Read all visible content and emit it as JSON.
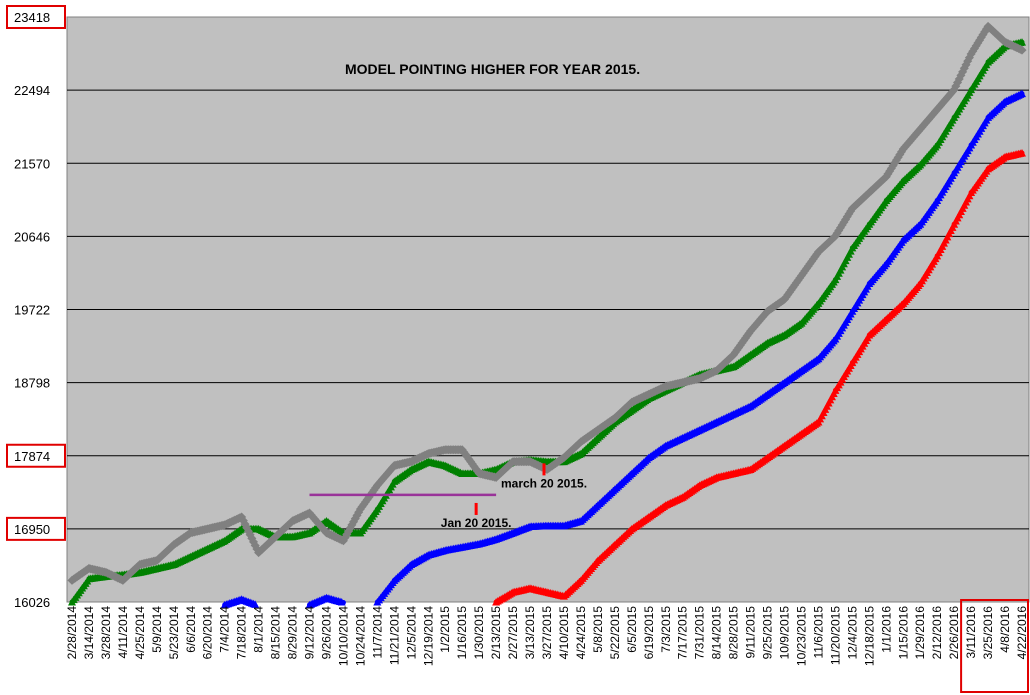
{
  "chart_data": {
    "type": "line",
    "title": "MODEL POINTING HIGHER FOR YEAR 2015.",
    "xlabel": "",
    "ylabel": "",
    "ylim": [
      16026,
      23418
    ],
    "yticks": [
      16026,
      16950,
      17874,
      18798,
      19722,
      20646,
      21570,
      22494,
      23418
    ],
    "highlighted_yticks": [
      23418,
      17874,
      16950
    ],
    "grid": true,
    "legend": "none",
    "colors": {
      "plot_bg": "#c0c0c0",
      "actual": "#808080",
      "green": "#008000",
      "blue": "#0000ff",
      "red": "#ff0000",
      "horizontal_marker": "#993399",
      "marker_tick": "#ff0000",
      "highlight_box": "#e00000"
    },
    "x": [
      "2/28/2014",
      "3/14/2014",
      "3/28/2014",
      "4/11/2014",
      "4/25/2014",
      "5/9/2014",
      "5/23/2014",
      "6/6/2014",
      "6/20/2014",
      "7/4/2014",
      "7/18/2014",
      "8/1/2014",
      "8/15/2014",
      "8/29/2014",
      "9/12/2014",
      "9/26/2014",
      "10/10/2014",
      "10/24/2014",
      "11/7/2014",
      "11/21/2014",
      "12/5/2014",
      "12/19/2014",
      "1/2/2015",
      "1/16/2015",
      "1/30/2015",
      "2/13/2015",
      "2/27/2015",
      "3/13/2015",
      "3/27/2015",
      "4/10/2015",
      "4/24/2015",
      "5/8/2015",
      "5/22/2015",
      "6/5/2015",
      "6/19/2015",
      "7/3/2015",
      "7/17/2015",
      "7/31/2015",
      "8/14/2015",
      "8/28/2015",
      "9/11/2015",
      "9/25/2015",
      "10/9/2015",
      "10/23/2015",
      "11/6/2015",
      "11/20/2015",
      "12/4/2015",
      "12/18/2015",
      "1/1/2016",
      "1/15/2016",
      "1/29/2016",
      "2/12/2016",
      "2/26/2016",
      "3/11/2016",
      "3/25/2016",
      "4/8/2016",
      "4/22/2016"
    ],
    "highlighted_xticks": [
      "3/11/2016",
      "3/25/2016",
      "4/8/2016",
      "4/22/2016"
    ],
    "series": [
      {
        "key": "actual",
        "marker": "diamond",
        "values": [
          16300,
          16450,
          16400,
          16300,
          16500,
          16550,
          16750,
          16900,
          16950,
          17000,
          17100,
          16650,
          16850,
          17050,
          17150,
          16900,
          16800,
          17200,
          17500,
          17750,
          17800,
          17900,
          17950,
          17950,
          17650,
          17600,
          17800,
          17800,
          17700,
          17850,
          18050,
          18200,
          18350,
          18550,
          18650,
          18750,
          18800,
          18850,
          18950,
          19150,
          19450,
          19700,
          19850,
          20150,
          20450,
          20650,
          21000,
          21200,
          21400,
          21750,
          22000,
          22250,
          22500,
          22950,
          23300,
          23100,
          23000
        ]
      },
      {
        "key": "green",
        "marker": "triangle",
        "values": [
          16026,
          16320,
          16350,
          16370,
          16400,
          16450,
          16500,
          16600,
          16700,
          16800,
          16950,
          16950,
          16850,
          16850,
          16900,
          17050,
          16900,
          16900,
          17200,
          17550,
          17700,
          17800,
          17750,
          17650,
          17650,
          17700,
          17800,
          17820,
          17800,
          17800,
          17900,
          18100,
          18300,
          18450,
          18600,
          18700,
          18800,
          18900,
          18950,
          19000,
          19150,
          19300,
          19400,
          19550,
          19800,
          20100,
          20500,
          20800,
          21100,
          21350,
          21550,
          21800,
          22150,
          22500,
          22850,
          23050,
          23100
        ]
      },
      {
        "key": "blue",
        "marker": "triangle",
        "values": [
          null,
          null,
          null,
          null,
          null,
          null,
          null,
          null,
          null,
          15990,
          16060,
          15980,
          null,
          null,
          15990,
          16080,
          16020,
          null,
          16026,
          16300,
          16500,
          16620,
          16680,
          16720,
          16760,
          16820,
          16900,
          16980,
          16990,
          16990,
          17050,
          17250,
          17450,
          17650,
          17850,
          18000,
          18100,
          18200,
          18300,
          18400,
          18500,
          18650,
          18800,
          18950,
          19100,
          19350,
          19700,
          20050,
          20300,
          20600,
          20800,
          21100,
          21450,
          21800,
          22150,
          22350,
          22450
        ]
      },
      {
        "key": "red",
        "marker": "triangle",
        "values": [
          null,
          null,
          null,
          null,
          null,
          null,
          null,
          null,
          null,
          null,
          null,
          null,
          null,
          null,
          null,
          null,
          null,
          null,
          null,
          null,
          null,
          null,
          null,
          null,
          null,
          16026,
          16150,
          16200,
          16150,
          16100,
          16300,
          16550,
          16750,
          16950,
          17100,
          17250,
          17350,
          17500,
          17600,
          17650,
          17700,
          17850,
          18000,
          18150,
          18300,
          18700,
          19050,
          19400,
          19600,
          19800,
          20050,
          20400,
          20800,
          21200,
          21500,
          21650,
          21700
        ]
      }
    ],
    "annotations": [
      {
        "text": "march 20 2015.",
        "x": "3/27/2015",
        "y": 17550
      },
      {
        "text": "Jan 20 2015.",
        "x": "1/30/2015",
        "y": 17050
      },
      {
        "type": "hline",
        "from": "9/12/2014",
        "to": "2/13/2015",
        "y": 17380
      }
    ]
  }
}
